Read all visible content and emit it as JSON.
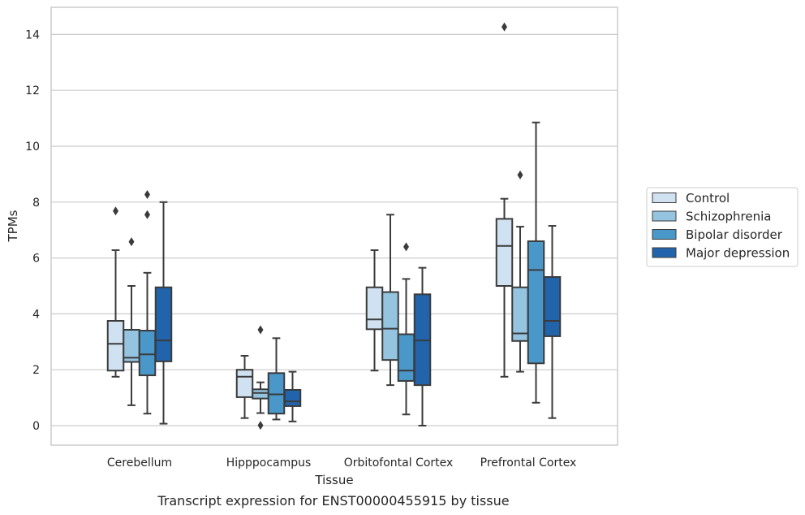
{
  "chart_data": {
    "type": "box",
    "title": "",
    "caption": "Transcript expression for ENST00000455915 by tissue",
    "xlabel": "Tissue",
    "ylabel": "TPMs",
    "ylim": [
      -0.7,
      15
    ],
    "yticks": [
      0,
      2,
      4,
      6,
      8,
      10,
      12,
      14
    ],
    "grid": "horizontal",
    "legend_position": "right",
    "categories": [
      "Cerebellum",
      "Hipppocampus",
      "Orbitofontal Cortex",
      "Prefrontal Cortex"
    ],
    "series": [
      {
        "name": "Control",
        "color": "#d0e1f2",
        "boxes": [
          {
            "whislo": 1.75,
            "q1": 1.97,
            "med": 2.93,
            "q3": 3.75,
            "whishi": 6.28,
            "fliers": [
              7.68
            ]
          },
          {
            "whislo": 0.27,
            "q1": 1.02,
            "med": 1.75,
            "q3": 2.0,
            "whishi": 2.5,
            "fliers": []
          },
          {
            "whislo": 1.97,
            "q1": 3.45,
            "med": 3.8,
            "q3": 4.95,
            "whishi": 6.28,
            "fliers": []
          },
          {
            "whislo": 1.75,
            "q1": 5.0,
            "med": 6.43,
            "q3": 7.4,
            "whishi": 8.12,
            "fliers": [
              14.27
            ]
          }
        ]
      },
      {
        "name": "Schizophrenia",
        "color": "#94c4df",
        "boxes": [
          {
            "whislo": 0.73,
            "q1": 2.28,
            "med": 2.43,
            "q3": 3.43,
            "whishi": 5.0,
            "fliers": [
              6.58
            ]
          },
          {
            "whislo": 0.45,
            "q1": 0.97,
            "med": 1.17,
            "q3": 1.3,
            "whishi": 1.55,
            "fliers": [
              3.43,
              0.01
            ]
          },
          {
            "whislo": 1.45,
            "q1": 2.35,
            "med": 3.47,
            "q3": 4.78,
            "whishi": 7.55,
            "fliers": []
          },
          {
            "whislo": 1.93,
            "q1": 3.03,
            "med": 3.3,
            "q3": 4.95,
            "whishi": 7.12,
            "fliers": [
              8.97
            ]
          }
        ]
      },
      {
        "name": "Bipolar disorder",
        "color": "#4a98c9",
        "boxes": [
          {
            "whislo": 0.43,
            "q1": 1.8,
            "med": 2.55,
            "q3": 3.4,
            "whishi": 5.47,
            "fliers": [
              8.27,
              7.55
            ]
          },
          {
            "whislo": 0.22,
            "q1": 0.43,
            "med": 1.12,
            "q3": 1.88,
            "whishi": 3.13,
            "fliers": []
          },
          {
            "whislo": 0.4,
            "q1": 1.6,
            "med": 1.97,
            "q3": 3.27,
            "whishi": 5.25,
            "fliers": [
              6.4
            ]
          },
          {
            "whislo": 0.82,
            "q1": 2.23,
            "med": 5.57,
            "q3": 6.6,
            "whishi": 10.85,
            "fliers": []
          }
        ]
      },
      {
        "name": "Major depression",
        "color": "#2164ab",
        "boxes": [
          {
            "whislo": 0.07,
            "q1": 2.3,
            "med": 3.05,
            "q3": 4.95,
            "whishi": 8.0,
            "fliers": []
          },
          {
            "whislo": 0.15,
            "q1": 0.7,
            "med": 0.87,
            "q3": 1.28,
            "whishi": 1.93,
            "fliers": []
          },
          {
            "whislo": 0.0,
            "q1": 1.45,
            "med": 3.05,
            "q3": 4.7,
            "whishi": 5.65,
            "fliers": []
          },
          {
            "whislo": 0.27,
            "q1": 3.2,
            "med": 3.75,
            "q3": 5.32,
            "whishi": 7.15,
            "fliers": []
          }
        ]
      }
    ]
  }
}
